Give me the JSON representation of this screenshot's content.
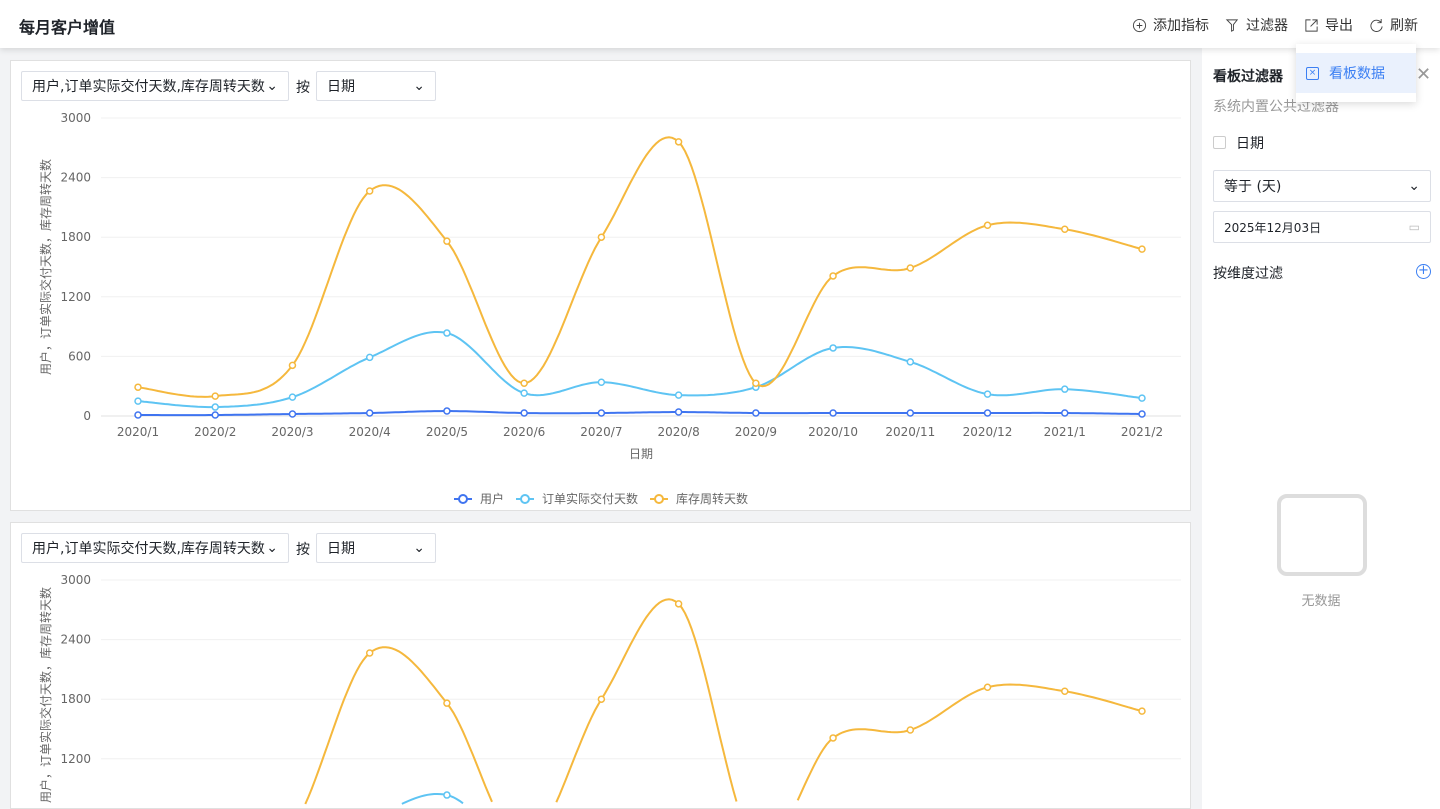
{
  "header": {
    "title": "每月客户增值",
    "tools": [
      {
        "label": "添加指标",
        "icon": "plus-circle-icon"
      },
      {
        "label": "过滤器",
        "icon": "filter-icon"
      },
      {
        "label": "导出",
        "icon": "export-icon"
      },
      {
        "label": "刷新",
        "icon": "refresh-icon"
      }
    ]
  },
  "popup": {
    "item": "看板数据"
  },
  "panels": [
    {
      "metric_select": "用户,订单实际交付天数,库存周转天数",
      "by_label": "按",
      "dim_select": "日期",
      "ylabel": "用户，订单实际交付天数，库存周转天数"
    },
    {
      "metric_select": "用户,订单实际交付天数,库存周转天数",
      "by_label": "按",
      "dim_select": "日期",
      "ylabel": "用户，订单实际交付天数，库存周转天数"
    }
  ],
  "sidebar": {
    "title": "看板过滤器",
    "subtitle": "系统内置公共过滤器",
    "date_label": "日期",
    "operator": "等于 (天)",
    "date_value": "2025年12月03日",
    "dim_filter": "按维度过滤",
    "empty": "无数据"
  },
  "chart_data": {
    "type": "line",
    "smooth": true,
    "categories": [
      "2020/1",
      "2020/2",
      "2020/3",
      "2020/4",
      "2020/5",
      "2020/6",
      "2020/7",
      "2020/8",
      "2020/9",
      "2020/10",
      "2020/11",
      "2020/12",
      "2021/1",
      "2021/2"
    ],
    "xlabel": "日期",
    "ylabel": "用户，订单实际交付天数，库存周转天数",
    "ylim": [
      0,
      3000
    ],
    "yticks": [
      0,
      600,
      1200,
      1800,
      2400,
      3000
    ],
    "grid": true,
    "legend": "bottom",
    "series": [
      {
        "name": "用户",
        "color": "#3f74f0",
        "values": [
          10,
          10,
          20,
          30,
          50,
          30,
          30,
          40,
          30,
          30,
          30,
          30,
          30,
          20
        ]
      },
      {
        "name": "订单实际交付天数",
        "color": "#5ec4f3",
        "values": [
          150,
          90,
          190,
          590,
          835,
          230,
          340,
          210,
          290,
          685,
          545,
          220,
          270,
          180
        ]
      },
      {
        "name": "库存周转天数",
        "color": "#f5b83d",
        "values": [
          290,
          200,
          510,
          2265,
          1760,
          330,
          1800,
          2760,
          330,
          1410,
          1490,
          1920,
          1880,
          1680
        ]
      }
    ]
  }
}
